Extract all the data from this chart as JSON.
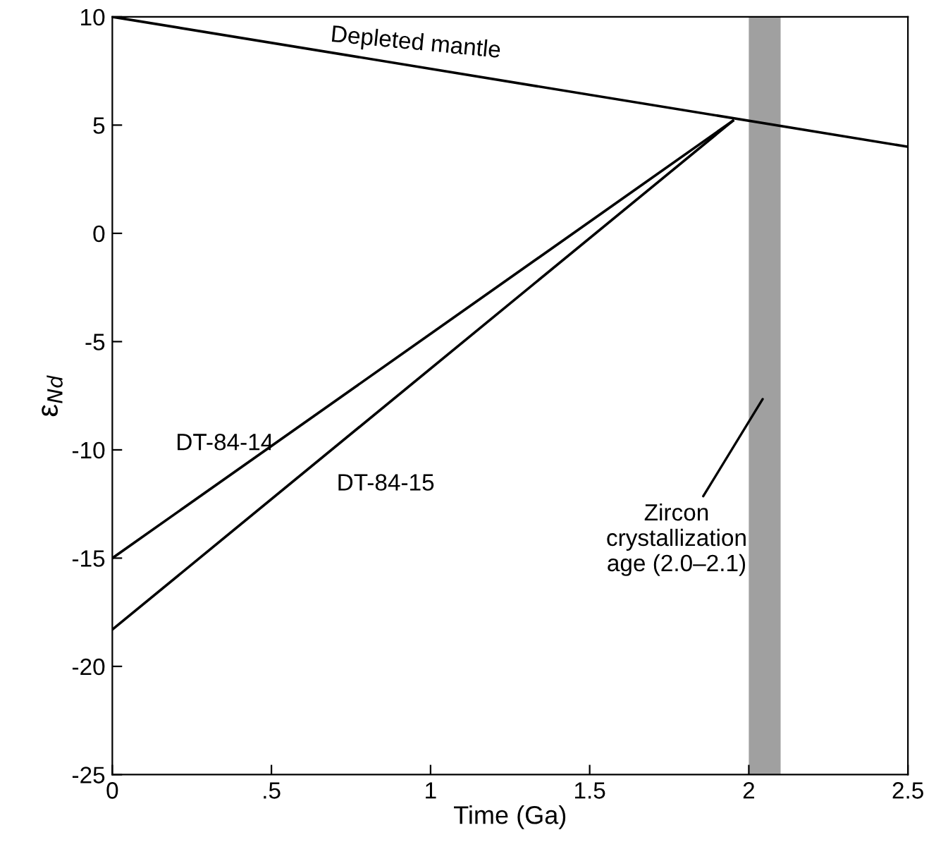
{
  "chart_data": {
    "type": "line",
    "xlabel": "Time (Ga)",
    "ylabel": "ε$_{Nd}$",
    "series": [
      {
        "name": "Depleted mantle",
        "color": "#000000",
        "x": [
          0,
          2.5
        ],
        "values": [
          10,
          4
        ]
      },
      {
        "name": "DT-84-14",
        "color": "#000000",
        "x": [
          0,
          1.95
        ],
        "values": [
          -15,
          5.2
        ]
      },
      {
        "name": "DT-84-15",
        "color": "#000000",
        "x": [
          0,
          1.95
        ],
        "values": [
          -18.3,
          5.2
        ]
      }
    ],
    "bands": [
      {
        "axis": "x",
        "from": 2.0,
        "to": 2.1,
        "color": "#a0a0a0",
        "label": "Zircon\ncrystallization\nage (2.0–2.1)"
      }
    ],
    "xlim": [
      0,
      2.5
    ],
    "ylim": [
      -25,
      10
    ],
    "xticks": [
      0,
      {
        "value": 0.5,
        "label": ".5"
      },
      1,
      1.5,
      2,
      2.5
    ],
    "yticks": [
      -25,
      -20,
      -15,
      -10,
      -5,
      0,
      5,
      10
    ],
    "grid": false,
    "legend": false,
    "marker": "none",
    "line_style": "solid"
  }
}
